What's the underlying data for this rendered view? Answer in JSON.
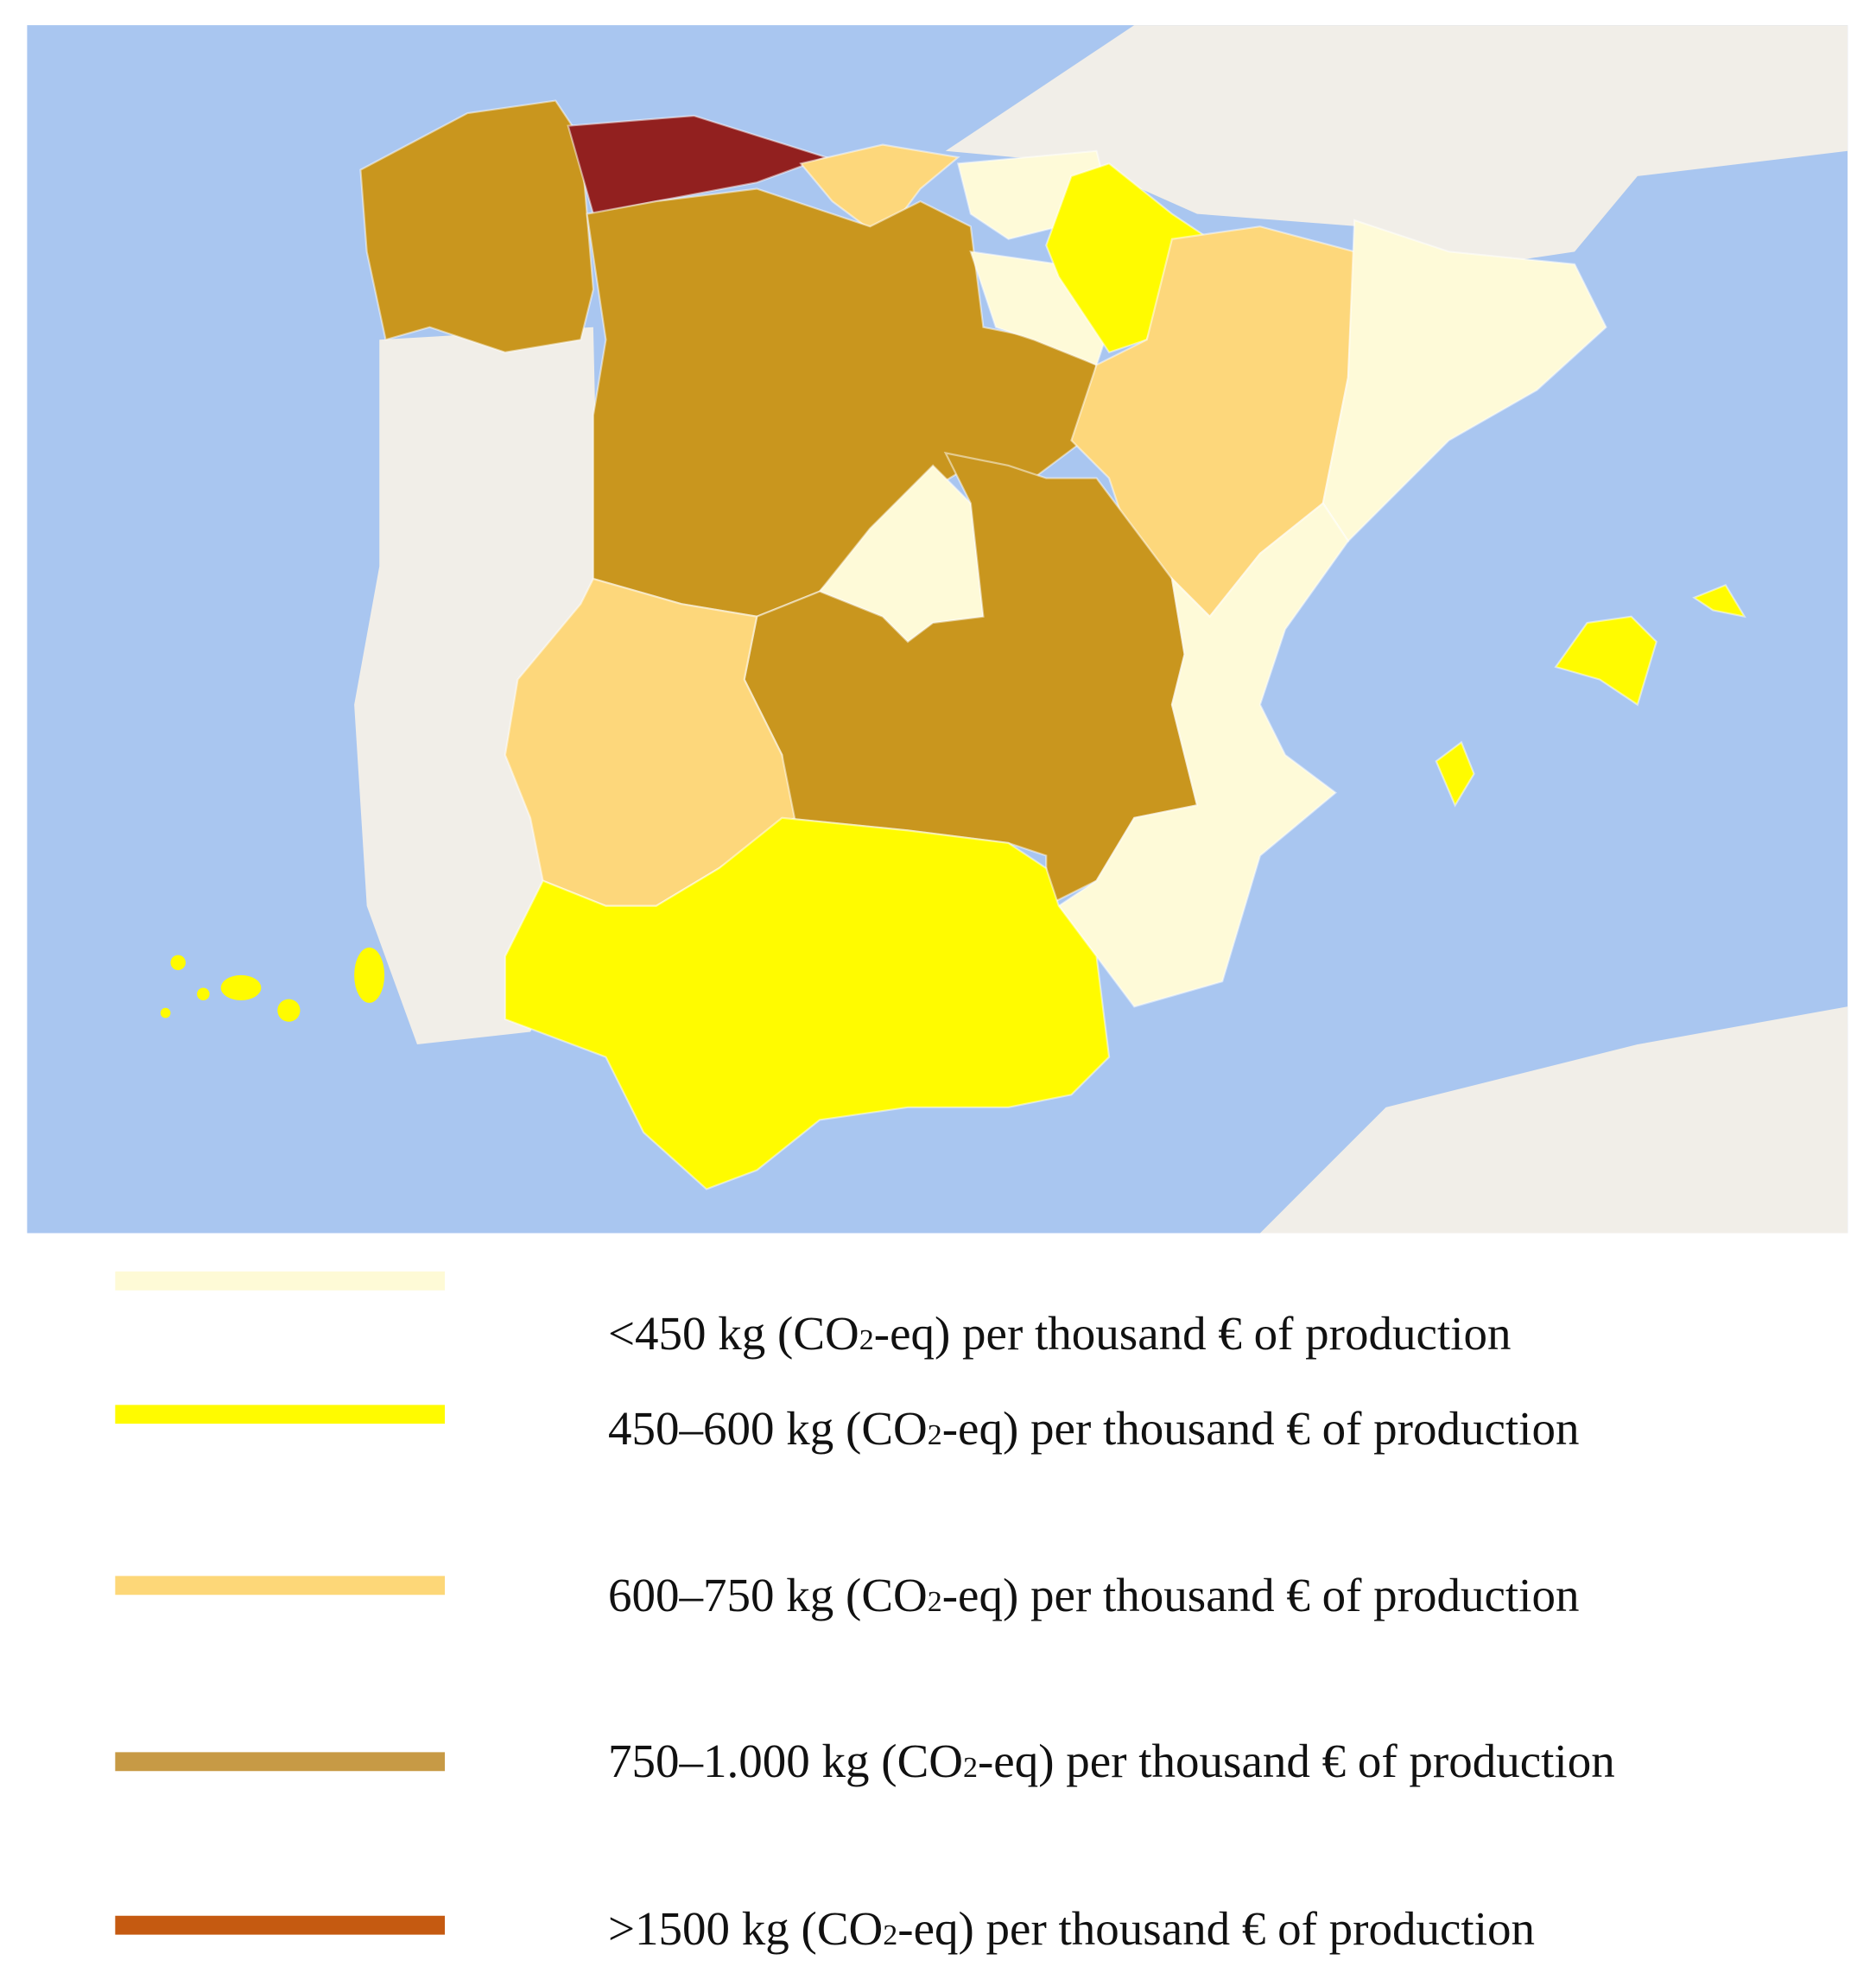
{
  "legend": {
    "items": [
      {
        "color": "#fefad6",
        "before": "<450 kg (CO",
        "sub": "2",
        "after": "-eq) per thousand € of production"
      },
      {
        "color": "#fffb00",
        "before": "450–600 kg (CO",
        "sub": "2",
        "after": "-eq) per thousand € of production"
      },
      {
        "color": "#fdd778",
        "before": "600–750 kg (CO",
        "sub": "2",
        "after": "-eq) per thousand € of production"
      },
      {
        "color": "#c79a45",
        "before": "750–1.000 kg (CO",
        "sub": "2",
        "after": "-eq) per thousand € of production"
      },
      {
        "color": "#c55a11",
        "before": ">1500 kg (CO",
        "sub": "2",
        "after": "-eq) per thousand € of production"
      }
    ]
  }
}
